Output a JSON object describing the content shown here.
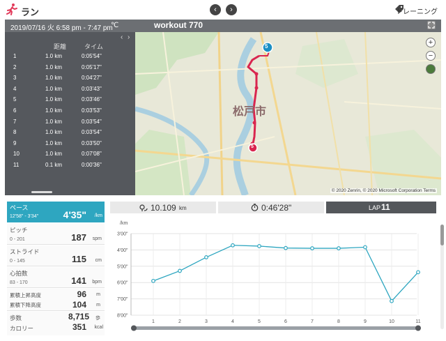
{
  "app": {
    "title": "ラン",
    "training_label": "トレーニング"
  },
  "header": {
    "date": "2019/07/16 火 6:58 pm - 7:47 pm",
    "temp": "℃",
    "workout_name": "workout 770"
  },
  "laps": {
    "col_distance": "距離",
    "col_time": "タイム",
    "rows": [
      {
        "n": "1",
        "dist": "1.0 km",
        "time": "0:05'54\""
      },
      {
        "n": "2",
        "dist": "1.0 km",
        "time": "0:05'17\""
      },
      {
        "n": "3",
        "dist": "1.0 km",
        "time": "0:04'27\""
      },
      {
        "n": "4",
        "dist": "1.0 km",
        "time": "0:03'43\""
      },
      {
        "n": "5",
        "dist": "1.0 km",
        "time": "0:03'46\""
      },
      {
        "n": "6",
        "dist": "1.0 km",
        "time": "0:03'53\""
      },
      {
        "n": "7",
        "dist": "1.0 km",
        "time": "0:03'54\""
      },
      {
        "n": "8",
        "dist": "1.0 km",
        "time": "0:03'54\""
      },
      {
        "n": "9",
        "dist": "1.0 km",
        "time": "0:03'50\""
      },
      {
        "n": "10",
        "dist": "1.0 km",
        "time": "0:07'08\""
      },
      {
        "n": "11",
        "dist": "0.1 km",
        "time": "0:00'36\""
      }
    ]
  },
  "map": {
    "city_label": "松戸市",
    "attribution": "© 2020 Zenrin, © 2020 Microsoft Corporation Terms",
    "marker_start": "5",
    "marker_end": "5",
    "zoom_in": "+",
    "zoom_out": "−"
  },
  "stats": {
    "pace": {
      "label": "ペース",
      "range": "12'58\" - 3'34\"",
      "value": "4'35\"",
      "unit": "/km"
    },
    "pitch": {
      "label": "ピッチ",
      "range": "0 - 201",
      "value": "187",
      "unit": "spm"
    },
    "stride": {
      "label": "ストライド",
      "range": "0 - 145",
      "value": "115",
      "unit": "cm"
    },
    "heart": {
      "label": "心拍数",
      "range": "83 - 170",
      "value": "141",
      "unit": "bpm"
    },
    "ascent": {
      "label": "累積上昇高度",
      "value": "96",
      "unit": "m"
    },
    "descent": {
      "label": "累積下降高度",
      "value": "104",
      "unit": "m"
    },
    "steps": {
      "label": "歩数",
      "value": "8,715",
      "unit": "歩"
    },
    "calories": {
      "label": "カロリー",
      "value": "351",
      "unit": "kcal"
    }
  },
  "tabs": {
    "distance": {
      "value": "10.109",
      "unit": "km"
    },
    "time": {
      "value": "0:46'28\""
    },
    "lap": {
      "label": "LAP",
      "value": "11"
    }
  },
  "chart_data": {
    "type": "line",
    "ylabel": "/km",
    "categories": [
      "1",
      "2",
      "3",
      "4",
      "5",
      "6",
      "7",
      "8",
      "9",
      "10",
      "11"
    ],
    "y_ticks": [
      "3'00\"",
      "4'00\"",
      "5'00\"",
      "6'00\"",
      "7'00\"",
      "8'00\""
    ],
    "ylim": [
      180,
      480
    ],
    "y_inverted": true,
    "values_seconds": [
      354,
      317,
      267,
      223,
      226,
      233,
      234,
      234,
      230,
      428,
      322
    ],
    "color": "#2ea6c0",
    "grid": true
  }
}
